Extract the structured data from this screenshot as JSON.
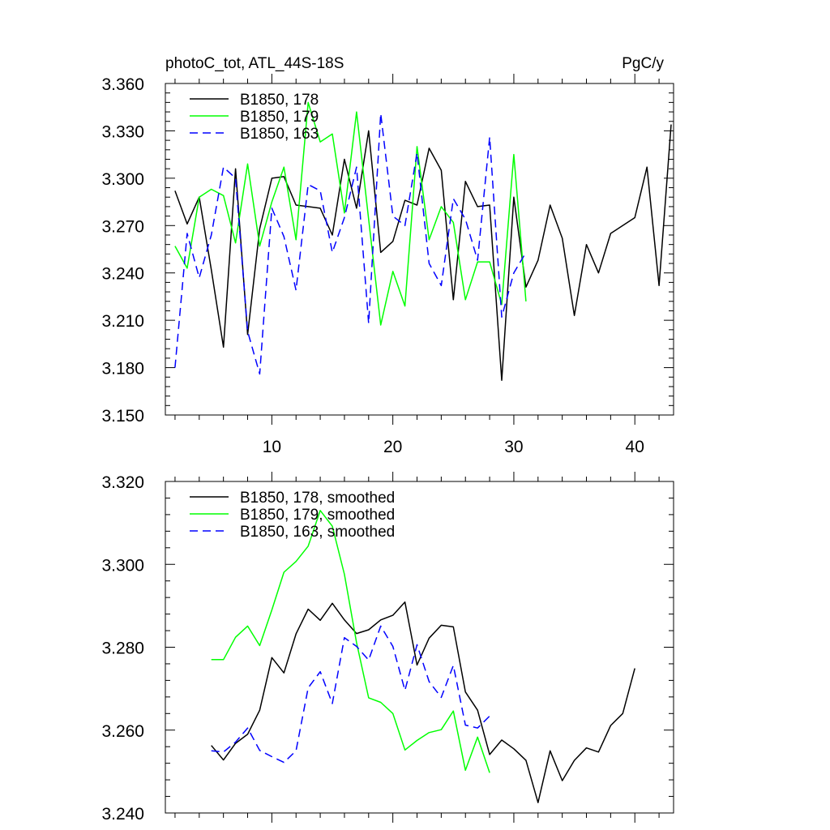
{
  "chart_data": [
    {
      "type": "line",
      "title_left": "photoC_tot, ATL_44S-18S",
      "title_right": "PgC/y",
      "xlim": [
        1.2,
        43.2
      ],
      "ylim": [
        3.15,
        3.36
      ],
      "x_ticks": [
        10,
        20,
        30,
        40
      ],
      "x_tick_labels": [
        "10",
        "20",
        "30",
        "40"
      ],
      "y_ticks": [
        3.15,
        3.18,
        3.21,
        3.24,
        3.27,
        3.3,
        3.33,
        3.36
      ],
      "y_tick_labels": [
        "3.150",
        "3.180",
        "3.210",
        "3.240",
        "3.270",
        "3.300",
        "3.330",
        "3.360"
      ],
      "legend_position": "top-left",
      "series": [
        {
          "name": "B1850, 178",
          "color": "#000000",
          "dash": "solid",
          "x": [
            2,
            3,
            4,
            5,
            6,
            7,
            8,
            9,
            10,
            11,
            12,
            13,
            14,
            15,
            16,
            17,
            18,
            19,
            20,
            21,
            22,
            23,
            24,
            25,
            26,
            27,
            28,
            29,
            30,
            31,
            32,
            33,
            34,
            35,
            36,
            37,
            38,
            39,
            40,
            41,
            42,
            43
          ],
          "values": [
            3.292,
            3.271,
            3.288,
            3.242,
            3.193,
            3.306,
            3.201,
            3.268,
            3.3,
            3.301,
            3.283,
            3.282,
            3.281,
            3.264,
            3.312,
            3.281,
            3.33,
            3.253,
            3.26,
            3.286,
            3.283,
            3.319,
            3.305,
            3.223,
            3.298,
            3.282,
            3.283,
            3.172,
            3.288,
            3.231,
            3.248,
            3.283,
            3.262,
            3.213,
            3.258,
            3.24,
            3.265,
            3.27,
            3.275,
            3.307,
            3.232,
            3.334
          ]
        },
        {
          "name": "B1850, 179",
          "color": "#00ff00",
          "dash": "solid",
          "x": [
            2,
            3,
            4,
            5,
            6,
            7,
            8,
            9,
            10,
            11,
            12,
            13,
            14,
            15,
            16,
            17,
            18,
            19,
            20,
            21,
            22,
            23,
            24,
            25,
            26,
            27,
            28,
            29,
            30,
            31
          ],
          "values": [
            3.257,
            3.243,
            3.288,
            3.293,
            3.289,
            3.259,
            3.309,
            3.257,
            3.285,
            3.307,
            3.261,
            3.348,
            3.323,
            3.328,
            3.278,
            3.342,
            3.274,
            3.207,
            3.241,
            3.219,
            3.32,
            3.261,
            3.282,
            3.272,
            3.223,
            3.247,
            3.247,
            3.22,
            3.315,
            3.222
          ]
        },
        {
          "name": "B1850, 163",
          "color": "#0000ff",
          "dash": "dashed",
          "x": [
            2,
            3,
            4,
            5,
            6,
            7,
            8,
            9,
            10,
            11,
            12,
            13,
            14,
            15,
            16,
            17,
            18,
            19,
            20,
            21,
            22,
            23,
            24,
            25,
            26,
            27,
            28,
            29,
            30,
            31
          ],
          "values": [
            3.18,
            3.265,
            3.237,
            3.264,
            3.307,
            3.3,
            3.203,
            3.176,
            3.281,
            3.263,
            3.229,
            3.296,
            3.292,
            3.253,
            3.275,
            3.307,
            3.208,
            3.341,
            3.276,
            3.27,
            3.316,
            3.246,
            3.232,
            3.287,
            3.274,
            3.248,
            3.326,
            3.212,
            3.24,
            3.253
          ]
        }
      ]
    },
    {
      "type": "line",
      "xlim": [
        1.2,
        43.2
      ],
      "ylim": [
        3.24,
        3.32
      ],
      "x_ticks": [
        10,
        20,
        30,
        40
      ],
      "y_ticks": [
        3.24,
        3.26,
        3.28,
        3.3,
        3.32
      ],
      "y_tick_labels": [
        "3.240",
        "3.260",
        "3.280",
        "3.300",
        "3.320"
      ],
      "legend_position": "top-left",
      "series": [
        {
          "name": "B1850, 178, smoothed",
          "color": "#000000",
          "dash": "solid",
          "x": [
            5,
            6,
            7,
            8,
            9,
            10,
            11,
            12,
            13,
            14,
            15,
            16,
            17,
            18,
            19,
            20,
            21,
            22,
            23,
            24,
            25,
            26,
            27,
            28,
            29,
            30,
            31,
            32,
            33,
            34,
            35,
            36,
            37,
            38,
            39,
            40
          ],
          "values": [
            3.2563,
            3.2528,
            3.2568,
            3.259,
            3.2648,
            3.2775,
            3.2738,
            3.2832,
            3.2892,
            3.2865,
            3.2906,
            3.2866,
            3.2833,
            3.2842,
            3.2866,
            3.2877,
            3.2909,
            3.2757,
            3.2822,
            3.2853,
            3.2849,
            3.2692,
            3.2648,
            3.2541,
            3.2576,
            3.2555,
            3.2527,
            3.2425,
            3.255,
            3.2478,
            3.2527,
            3.2557,
            3.2547,
            3.2611,
            3.264,
            3.2749
          ]
        },
        {
          "name": "B1850, 179, smoothed",
          "color": "#00ff00",
          "dash": "solid",
          "x": [
            5,
            6,
            7,
            8,
            9,
            10,
            11,
            12,
            13,
            14,
            15,
            16,
            17,
            18,
            19,
            20,
            21,
            22,
            23,
            24,
            25,
            26,
            27,
            28
          ],
          "values": [
            3.277,
            3.277,
            3.2824,
            3.2851,
            3.2804,
            3.289,
            3.2981,
            3.3007,
            3.3044,
            3.313,
            3.3092,
            3.2976,
            3.2811,
            3.2678,
            3.2667,
            3.264,
            3.2552,
            3.2575,
            3.2594,
            3.2601,
            3.2646,
            3.2503,
            3.2583,
            3.2497
          ]
        },
        {
          "name": "B1850, 163, smoothed",
          "color": "#0000ff",
          "dash": "dashed",
          "x": [
            5,
            6,
            7,
            8,
            9,
            10,
            11,
            12,
            13,
            14,
            15,
            16,
            17,
            18,
            19,
            20,
            21,
            22,
            23,
            24,
            25,
            26,
            27,
            28
          ],
          "values": [
            3.255,
            3.2547,
            3.2571,
            3.2605,
            3.2551,
            3.2536,
            3.2522,
            3.255,
            3.2702,
            3.2741,
            3.2664,
            3.2823,
            3.2802,
            3.2769,
            3.2851,
            3.2802,
            3.2696,
            3.2806,
            3.2717,
            3.2679,
            3.2756,
            3.2612,
            3.2605,
            3.2634
          ]
        }
      ]
    }
  ]
}
